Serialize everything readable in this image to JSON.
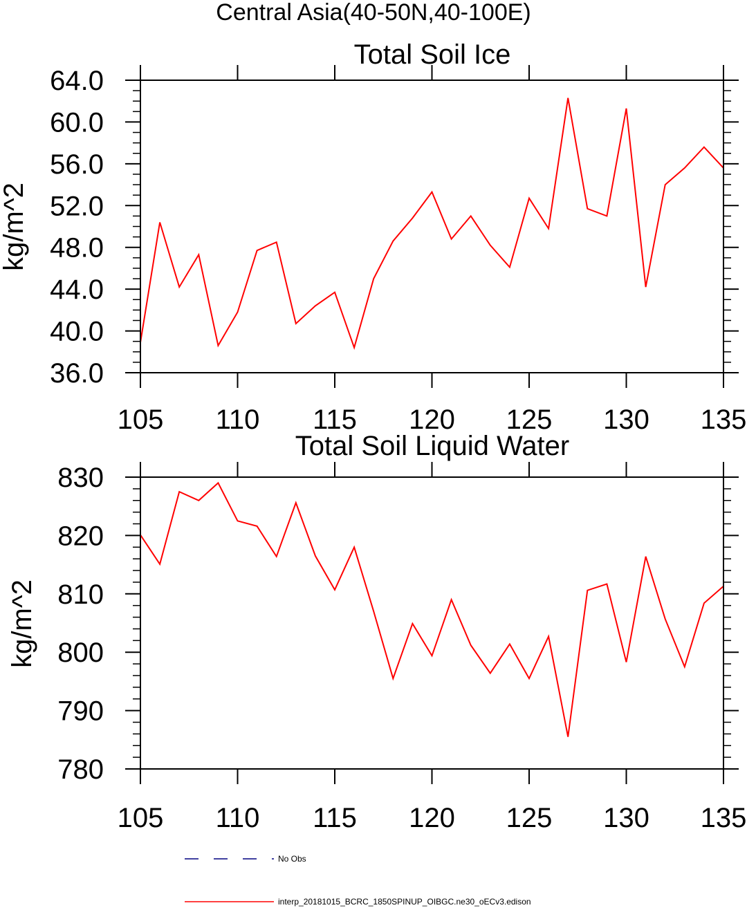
{
  "suptitle": "Central Asia(40-50N,40-100E)",
  "chart_data": [
    {
      "type": "line",
      "title": "Total Soil Ice",
      "xlabel": "",
      "ylabel": "kg/m^2",
      "xlim": [
        105,
        135
      ],
      "ylim": [
        36,
        64
      ],
      "xticks": [
        105,
        110,
        115,
        120,
        125,
        130,
        135
      ],
      "xtick_labels": [
        "105",
        "110",
        "115",
        "120",
        "125",
        "130",
        "135"
      ],
      "yticks": [
        36,
        40,
        44,
        48,
        52,
        56,
        60,
        64
      ],
      "ytick_labels": [
        "36.0",
        "40.0",
        "44.0",
        "48.0",
        "52.0",
        "56.0",
        "60.0",
        "64.0"
      ],
      "x": [
        105,
        106,
        107,
        108,
        109,
        110,
        111,
        112,
        113,
        114,
        115,
        116,
        117,
        118,
        119,
        120,
        121,
        122,
        123,
        124,
        125,
        126,
        127,
        128,
        129,
        130,
        131,
        132,
        133,
        134,
        135
      ],
      "series": [
        {
          "color": "#ff0000",
          "values": [
            38.9,
            50.4,
            44.2,
            47.3,
            38.6,
            41.8,
            47.7,
            48.5,
            40.7,
            42.4,
            43.7,
            38.4,
            45.0,
            48.6,
            50.8,
            53.3,
            48.8,
            51.0,
            48.2,
            46.1,
            52.7,
            49.8,
            62.3,
            51.7,
            51.0,
            61.3,
            44.2,
            54.0,
            55.6,
            57.6,
            55.6
          ]
        }
      ],
      "grid": false
    },
    {
      "type": "line",
      "title": "Total Soil Liquid Water",
      "xlabel": "",
      "ylabel": "kg/m^2",
      "xlim": [
        105,
        135
      ],
      "ylim": [
        780,
        830
      ],
      "xticks": [
        105,
        110,
        115,
        120,
        125,
        130,
        135
      ],
      "xtick_labels": [
        "105",
        "110",
        "115",
        "120",
        "125",
        "130",
        "135"
      ],
      "yticks": [
        780,
        790,
        800,
        810,
        820,
        830
      ],
      "ytick_labels": [
        "780",
        "790",
        "800",
        "810",
        "820",
        "830"
      ],
      "x": [
        105,
        106,
        107,
        108,
        109,
        110,
        111,
        112,
        113,
        114,
        115,
        116,
        117,
        118,
        119,
        120,
        121,
        122,
        123,
        124,
        125,
        126,
        127,
        128,
        129,
        130,
        131,
        132,
        133,
        134,
        135
      ],
      "series": [
        {
          "color": "#ff0000",
          "values": [
            820.1,
            815.1,
            827.5,
            826.0,
            829.0,
            822.5,
            821.6,
            816.4,
            825.6,
            816.5,
            810.7,
            818.0,
            807.0,
            795.5,
            804.9,
            799.4,
            809.0,
            801.2,
            796.4,
            801.4,
            795.5,
            802.7,
            785.5,
            810.6,
            811.7,
            798.3,
            816.4,
            805.7,
            797.5,
            808.4,
            811.3
          ]
        }
      ],
      "grid": false
    }
  ],
  "legend": {
    "placement": "bottom-left",
    "items": [
      {
        "label": "No Obs",
        "style": "dashed",
        "color": "#000080"
      },
      {
        "label": "interp_20181015_BCRC_1850SPINUP_OIBGC.ne30_oECv3.edison",
        "style": "solid",
        "color": "#ff0000"
      }
    ]
  }
}
